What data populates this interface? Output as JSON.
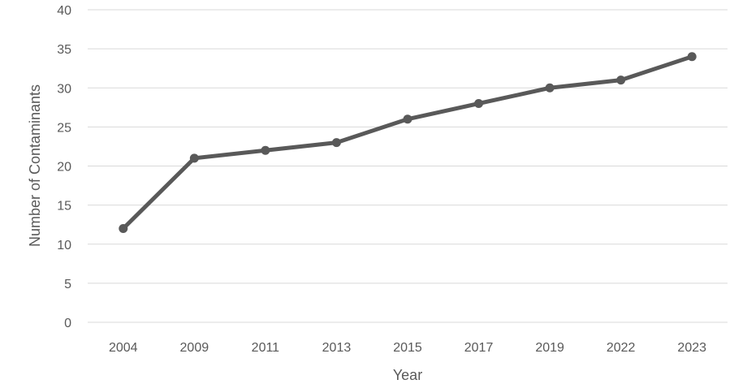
{
  "chart_data": {
    "type": "line",
    "title": "",
    "xlabel": "Year",
    "ylabel": "Number of Contaminants",
    "categories": [
      "2004",
      "2009",
      "2011",
      "2013",
      "2015",
      "2017",
      "2019",
      "2022",
      "2023"
    ],
    "series": [
      {
        "values": [
          12,
          21,
          22,
          23,
          26,
          28,
          30,
          31,
          34
        ]
      }
    ],
    "ylim": [
      0,
      40
    ],
    "yticks": [
      "0",
      "5",
      "10",
      "15",
      "20",
      "25",
      "30",
      "35",
      "40"
    ],
    "grid": true,
    "legend": "none",
    "line_color": "#595959"
  }
}
